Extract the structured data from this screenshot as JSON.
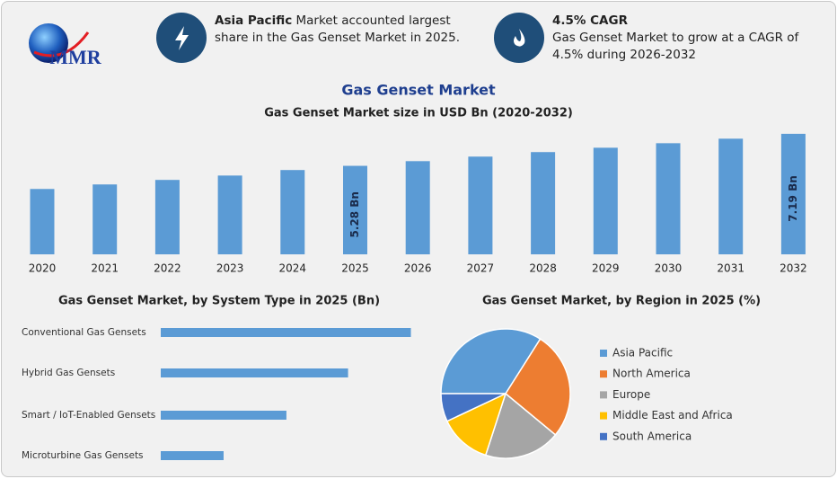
{
  "header": {
    "logo": "MMR",
    "info": [
      {
        "bold": "Asia Pacific",
        "text": "Market accounted largest share in the Gas Genset Market in 2025."
      },
      {
        "bold": "4.5% CAGR",
        "text": "Gas Genset Market to grow at a CAGR of 4.5% during 2026-2032"
      }
    ],
    "title": "Gas Genset Market"
  },
  "chart_data": [
    {
      "type": "bar",
      "title": "Gas Genset Market size in USD Bn (2020-2032)",
      "categories": [
        "2020",
        "2021",
        "2022",
        "2023",
        "2024",
        "2025",
        "2026",
        "2027",
        "2028",
        "2029",
        "2030",
        "2031",
        "2032"
      ],
      "values": [
        3.9,
        4.17,
        4.44,
        4.7,
        5.03,
        5.28,
        5.56,
        5.83,
        6.1,
        6.36,
        6.63,
        6.9,
        7.19
      ],
      "value_labels": [
        null,
        null,
        null,
        null,
        null,
        "5.28 Bn",
        null,
        null,
        null,
        null,
        null,
        null,
        "7.19 Bn"
      ],
      "color": "#5b9bd5"
    },
    {
      "type": "hbar",
      "title": "Gas Genset Market, by System Type in 2025 (Bn)",
      "categories": [
        "Conventional Gas Gensets",
        "Hybrid Gas Gensets",
        "Smart / IoT-Enabled Gensets",
        "Microturbine Gas Gensets"
      ],
      "values": [
        2.11,
        1.58,
        1.06,
        0.53
      ],
      "color": "#5b9bd5"
    },
    {
      "type": "pie",
      "title": "Gas Genset Market, by Region in 2025 (%)",
      "categories": [
        "Asia Pacific",
        "North America",
        "Europe",
        "Middle East and Africa",
        "South America"
      ],
      "values": [
        34,
        27,
        19,
        13,
        7
      ],
      "colors": [
        "#5b9bd5",
        "#ed7d31",
        "#a5a5a5",
        "#ffc000",
        "#4472c4"
      ]
    }
  ]
}
